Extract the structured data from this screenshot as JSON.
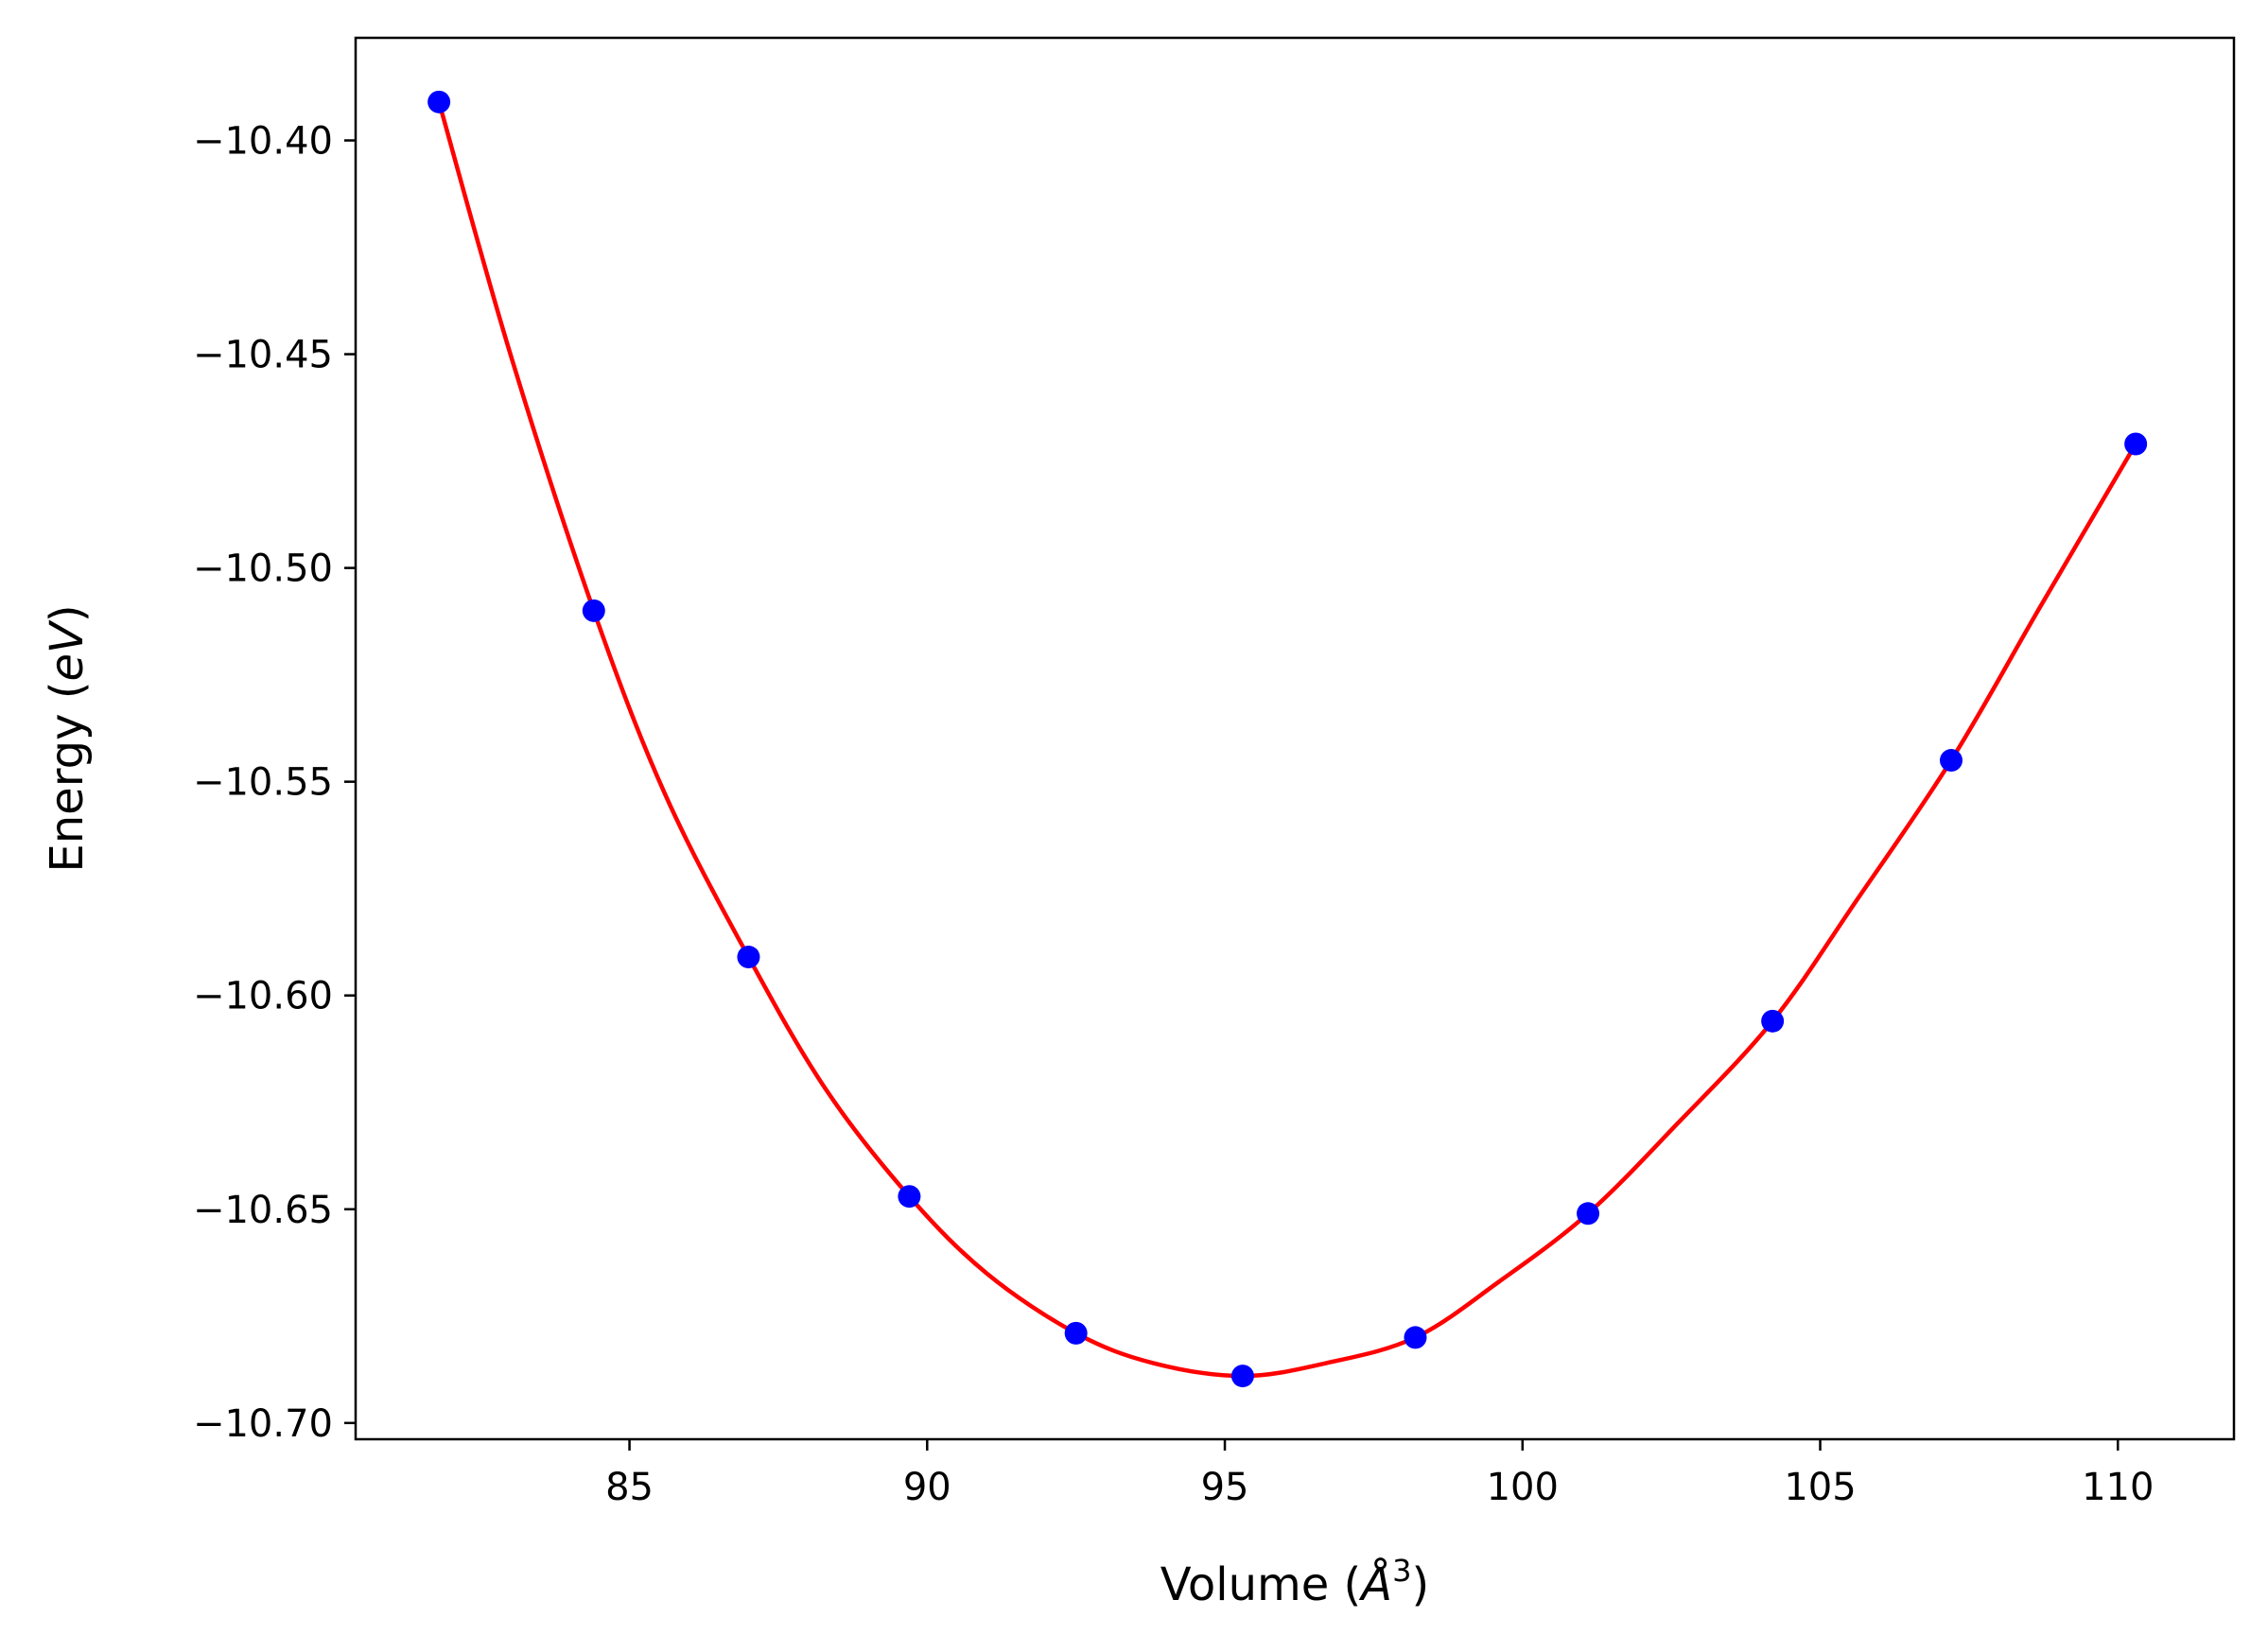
{
  "chart_data": {
    "type": "scatter",
    "title": "",
    "xlabel": {
      "prefix": "Volume (",
      "symbol": "Å",
      "superscript": "3",
      "suffix": ")"
    },
    "ylabel": {
      "prefix": "Energy (",
      "unit": "eV",
      "suffix": ")"
    },
    "xlim": [
      80.4,
      111.95
    ],
    "ylim": [
      -10.7038,
      -10.376
    ],
    "xticks": [
      85,
      90,
      95,
      100,
      105,
      110
    ],
    "xtick_labels": [
      "85",
      "90",
      "95",
      "100",
      "105",
      "110"
    ],
    "yticks": [
      -10.4,
      -10.45,
      -10.5,
      -10.55,
      -10.6,
      -10.65,
      -10.7
    ],
    "ytick_labels": [
      "−10.40",
      "−10.45",
      "−10.50",
      "−10.55",
      "−10.60",
      "−10.65",
      "−10.70"
    ],
    "grid": false,
    "series": [
      {
        "kind": "points",
        "color": "#0000ff",
        "x": [
          81.8,
          84.4,
          87.0,
          89.7,
          92.5,
          95.3,
          98.2,
          101.1,
          104.2,
          107.2,
          110.3
        ],
        "y": [
          -10.391,
          -10.51,
          -10.591,
          -10.647,
          -10.679,
          -10.689,
          -10.68,
          -10.651,
          -10.606,
          -10.545,
          -10.471
        ]
      },
      {
        "kind": "fit-curve",
        "color": "#ff0000",
        "x": [
          81.8,
          83.0,
          84.4,
          85.6,
          87.0,
          88.3,
          89.7,
          91.0,
          92.5,
          93.8,
          95.3,
          96.7,
          98.2,
          99.6,
          101.1,
          102.6,
          104.2,
          105.6,
          107.2,
          108.7,
          110.3
        ],
        "y": [
          -10.391,
          -10.45,
          -10.51,
          -10.553,
          -10.591,
          -10.622,
          -10.647,
          -10.665,
          -10.679,
          -10.686,
          -10.689,
          -10.686,
          -10.68,
          -10.667,
          -10.651,
          -10.63,
          -10.606,
          -10.578,
          -10.545,
          -10.509,
          -10.471
        ]
      }
    ]
  }
}
